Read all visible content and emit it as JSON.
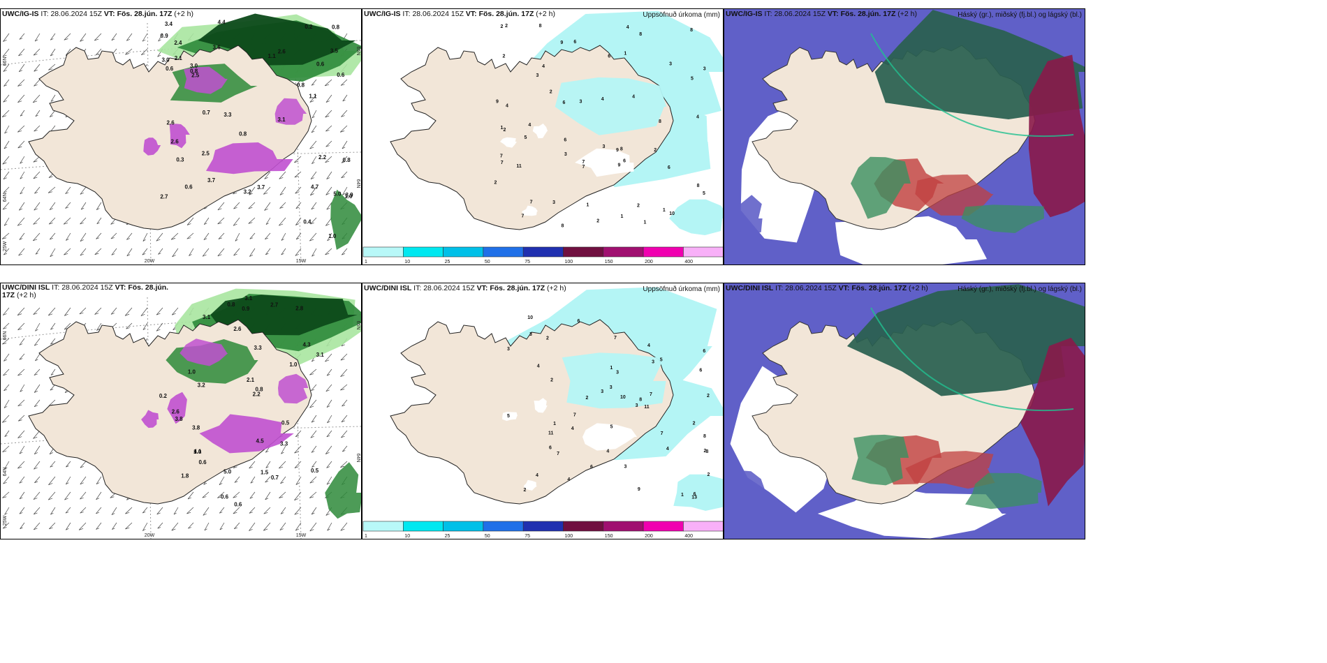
{
  "rows": [
    {
      "model": "UWC/IG-IS",
      "it_label": "IT:",
      "it": "28.06.2024 15Z",
      "vt_label": "VT:",
      "vt": "Fös. 28.jún. 17Z",
      "lead": "(+2 h)"
    },
    {
      "model": "UWC/DINI ISL",
      "it_label": "IT:",
      "it": "28.06.2024 15Z",
      "vt_label": "VT:",
      "vt": "Fös. 28.jún. 17Z",
      "lead": "(+2 h)"
    }
  ],
  "precip_title": "Uppsöfnuð úrkoma (mm)",
  "cloud_title": "Háský (gr.), miðský (fj.bl.) og lágský (bl.)",
  "lat_labels": [
    "66N",
    "64N",
    "65N",
    "63N"
  ],
  "lon_labels": [
    "20W",
    "15W",
    "25W"
  ],
  "colorbar": {
    "ticks": [
      "1",
      "10",
      "25",
      "50",
      "75",
      "100",
      "150",
      "200",
      "400"
    ],
    "colors": [
      "#b8f8f8",
      "#00e8f0",
      "#00c0e8",
      "#2070e8",
      "#2030b0",
      "#701040",
      "#a01070",
      "#f000b0",
      "#f8b0f8"
    ]
  },
  "colors": {
    "land": "#f2e6d8",
    "precip_light": "#b4f5f5",
    "green_dark": "#0d4a1a",
    "green_mid": "#2e8a3a",
    "green_light": "#a8e6a0",
    "magenta": "#c050d0",
    "high_cloud": "#6060c8",
    "mid_cloud": "#2a6050",
    "low_cloud_red": "#c04040",
    "low_cloud_green": "#3a9060"
  },
  "panel_a_values": [
    [
      "2.4",
      "2.6"
    ],
    [
      "3.1",
      "2.7"
    ],
    [
      "2.6",
      "3.4"
    ],
    [
      "3.7",
      "3.9"
    ],
    [
      "4.4",
      "3.0"
    ],
    [
      "3.2",
      "4.7"
    ],
    [
      "2.6",
      "3.3"
    ],
    [
      "2.2",
      "3.6"
    ],
    [
      "2.6",
      "2.6"
    ],
    [
      "0.9",
      "0.4"
    ],
    [
      "0.8",
      "0.2"
    ],
    [
      "1.0",
      "0.6"
    ],
    [
      "1.0",
      "0.8"
    ],
    [
      "0.8",
      "1.1"
    ],
    [
      "0.6",
      "0.7"
    ],
    [
      "0.6",
      "0.6"
    ],
    [
      "2.1",
      "3.0"
    ],
    [
      "3.5",
      "5.0"
    ],
    [
      "3.7",
      "2.5"
    ],
    [
      "0.3",
      "1.1"
    ]
  ],
  "panel_a_labels_row1": [
    "2.4",
    "2.6",
    "3.1",
    "2.7",
    "2.6",
    "3.4",
    "3.7",
    "3.9",
    "4.4",
    "3.0",
    "3.2",
    "4.7",
    "2.6",
    "3.3",
    "2.2",
    "3.6",
    "0.9",
    "0.4",
    "0.8",
    "0.2",
    "1.0",
    "0.6",
    "0.8",
    "1.1",
    "0.7",
    "0.6",
    "0.6",
    "2.1",
    "3.0",
    "3.5",
    "5.0",
    "3.7",
    "2.5",
    "0.3",
    "1.1",
    "0.8",
    "0.8",
    "2.5",
    "0.6",
    "0.8",
    "1.0"
  ],
  "panel_a_labels_row2": [
    "1.8",
    "2.8",
    "3.1",
    "4.3",
    "4.5",
    "3.2",
    "3.8",
    "4.1",
    "3.1",
    "1.0",
    "2.6",
    "3.1",
    "3.3",
    "2.2",
    "0.6",
    "0.8",
    "0.5",
    "0.2",
    "1.0",
    "0.6",
    "0.7",
    "0.9",
    "2.6",
    "0.8",
    "2.1",
    "5.0",
    "3.8",
    "2.7",
    "3.3",
    "0.5",
    "1.0",
    "0.6",
    "1.5"
  ],
  "panel_b_labels_row1": [
    "6",
    "4",
    "8",
    "9",
    "6",
    "3",
    "8",
    "8",
    "6",
    "4",
    "7",
    "9",
    "11",
    "7",
    "6",
    "8",
    "4",
    "7",
    "8",
    "3",
    "7",
    "9",
    "7",
    "7",
    "2",
    "4",
    "2",
    "2",
    "5",
    "5",
    "4",
    "3",
    "6",
    "2",
    "3",
    "8",
    "1",
    "2",
    "10",
    "4",
    "4",
    "6",
    "3",
    "9",
    "8",
    "2",
    "1",
    "1",
    "1",
    "5",
    "1",
    "3",
    "1",
    "2",
    "2",
    "2",
    "3"
  ],
  "panel_b_labels_row2": [
    "9",
    "4",
    "2",
    "5",
    "6",
    "6",
    "7",
    "8",
    "4",
    "11",
    "8",
    "7",
    "7",
    "11",
    "4",
    "10",
    "6",
    "2",
    "5",
    "5",
    "3",
    "2",
    "3",
    "4",
    "6",
    "7",
    "13",
    "4",
    "7",
    "3",
    "2",
    "4",
    "8",
    "3",
    "2",
    "3",
    "1",
    "10",
    "6",
    "6",
    "3",
    "3",
    "1",
    "2",
    "2",
    "4",
    "3",
    "2",
    "1"
  ]
}
